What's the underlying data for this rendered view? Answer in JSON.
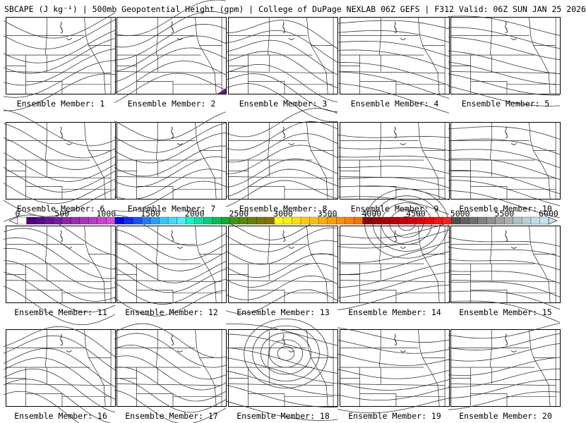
{
  "title": "SBCAPE (J kg⁻¹) | 500mb Geopotential Height (gpm) | College of DuPage NEXLAB 06Z GEFS | F312 Valid: 06Z SUN JAN 25 2026",
  "members": [
    {
      "label": "Ensemble Member: 1"
    },
    {
      "label": "Ensemble Member: 2"
    },
    {
      "label": "Ensemble Member: 3"
    },
    {
      "label": "Ensemble Member: 4"
    },
    {
      "label": "Ensemble Member: 5"
    },
    {
      "label": "Ensemble Member: 6"
    },
    {
      "label": "Ensemble Member: 7"
    },
    {
      "label": "Ensemble Member: 8"
    },
    {
      "label": "Ensemble Member: 9"
    },
    {
      "label": "Ensemble Member: 10"
    },
    {
      "label": "Ensemble Member: 11"
    },
    {
      "label": "Ensemble Member: 12"
    },
    {
      "label": "Ensemble Member: 13"
    },
    {
      "label": "Ensemble Member: 14"
    },
    {
      "label": "Ensemble Member: 15"
    },
    {
      "label": "Ensemble Member: 16"
    },
    {
      "label": "Ensemble Member: 17"
    },
    {
      "label": "Ensemble Member: 18"
    },
    {
      "label": "Ensemble Member: 19"
    },
    {
      "label": "Ensemble Member: 20"
    }
  ],
  "colorbar": {
    "ticks": [
      "0",
      "500",
      "1000",
      "1500",
      "2000",
      "2500",
      "3000",
      "3500",
      "4000",
      "4500",
      "5000",
      "5500",
      "6000"
    ],
    "colors": [
      "#ffffff",
      "#4b0082",
      "#5a0a8c",
      "#6a1296",
      "#7a1aa0",
      "#8a22aa",
      "#9a2ab4",
      "#aa32be",
      "#ba3ac8",
      "#ca42d2",
      "#da4adc",
      "#0000ff",
      "#0a2aff",
      "#1450ff",
      "#1e78ff",
      "#28a0ff",
      "#32c8ff",
      "#3cdcff",
      "#46f0ff",
      "#00ffc8",
      "#00e6a0",
      "#00d278",
      "#00be50",
      "#14aa28",
      "#3c9614",
      "#508c0a",
      "#648200",
      "#787800",
      "#8c6e00",
      "#ffff00",
      "#fff000",
      "#ffe000",
      "#ffd000",
      "#ffc000",
      "#ffb000",
      "#ffa000",
      "#ff9000",
      "#ff8000",
      "#ff7000",
      "#8b0000",
      "#9b0000",
      "#ab0000",
      "#bb0000",
      "#cb0000",
      "#db0000",
      "#eb0000",
      "#fb0000",
      "#ff1010",
      "#ff2020",
      "#505050",
      "#606060",
      "#707070",
      "#808080",
      "#909090",
      "#a0a0a0",
      "#a8b0b8",
      "#b0c0c8",
      "#b8d0d8",
      "#c0dce4",
      "#c8e4ec"
    ]
  }
}
